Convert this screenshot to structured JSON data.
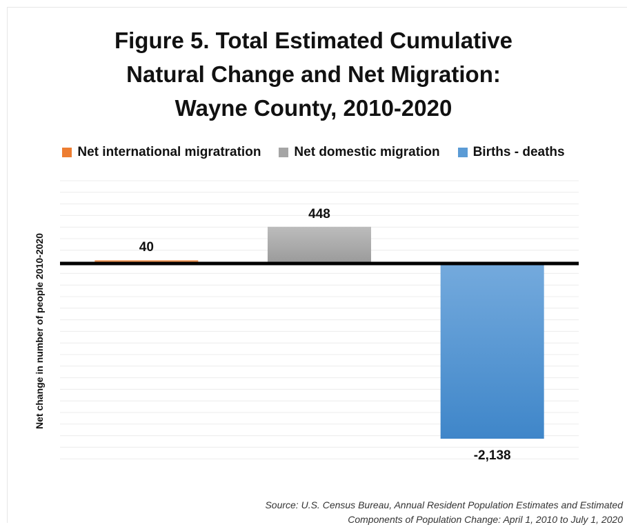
{
  "title_lines": [
    "Figure 5. Total Estimated Cumulative",
    "Natural Change and Net Migration:",
    "Wayne County, 2010-2020"
  ],
  "chart_data": {
    "type": "bar",
    "title": "Figure 5. Total Estimated Cumulative Natural Change and Net Migration: Wayne County, 2010-2020",
    "ylabel": "Net change in number of people 2010-2020",
    "xlabel": "",
    "categories": [
      "Net international migratration",
      "Net domestic migration",
      "Births  - deaths"
    ],
    "values": [
      40,
      448,
      -2138
    ],
    "data_labels": [
      "40",
      "448",
      "-2,138"
    ],
    "colors": [
      "#ed7d31",
      "#a5a5a5",
      "#5b9bd5"
    ],
    "ylim": [
      -2500,
      1000
    ],
    "grid": true,
    "legend": "top"
  },
  "legend": [
    {
      "label": "Net international migratration",
      "color": "#ed7d31"
    },
    {
      "label": "Net domestic migration",
      "color": "#a5a5a5"
    },
    {
      "label": "Births  - deaths",
      "color": "#5b9bd5"
    }
  ],
  "source_lines": [
    "Source: U.S. Census Bureau, Annual Resident Population Estimates and Estimated",
    "Components of Population Change: April 1, 2010 to July 1, 2020"
  ]
}
